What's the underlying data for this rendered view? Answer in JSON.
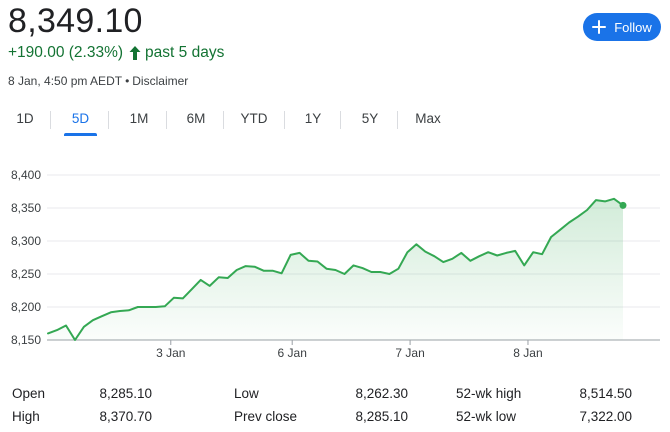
{
  "quote": {
    "price": "8,349.10",
    "change": "+190.00 (2.33%)",
    "period": "past 5 days",
    "timestamp": "8 Jan, 4:50 pm AEDT",
    "separator": "•",
    "disclaimer": "Disclaimer",
    "positive_color": "#137333"
  },
  "follow_button": {
    "label": "Follow",
    "icon": "plus-icon",
    "color": "#1a73e8"
  },
  "range_tabs": [
    {
      "label": "1D",
      "active": false
    },
    {
      "label": "5D",
      "active": true
    },
    {
      "label": "1M",
      "active": false
    },
    {
      "label": "6M",
      "active": false
    },
    {
      "label": "YTD",
      "active": false
    },
    {
      "label": "1Y",
      "active": false
    },
    {
      "label": "5Y",
      "active": false
    },
    {
      "label": "Max",
      "active": false
    }
  ],
  "chart_data": {
    "type": "area",
    "y_ticks": [
      "8,400",
      "8,350",
      "8,300",
      "8,250",
      "8,200",
      "8,150"
    ],
    "y_tick_values": [
      8400,
      8350,
      8300,
      8250,
      8200,
      8150
    ],
    "ylim": [
      8150,
      8400
    ],
    "x_ticks": [
      "3 Jan",
      "6 Jan",
      "7 Jan",
      "8 Jan"
    ],
    "x_tick_positions": [
      10.5,
      20.8,
      30.8,
      40.8
    ],
    "xlim": [
      0,
      52
    ],
    "grid": true,
    "line_color": "#34a853",
    "values": [
      8160,
      8165,
      8172,
      8150,
      8170,
      8180,
      8186,
      8192,
      8194,
      8195,
      8200,
      8200,
      8200,
      8201,
      8214,
      8213,
      8227,
      8241,
      8232,
      8245,
      8244,
      8256,
      8262,
      8261,
      8255,
      8255,
      8251,
      8279,
      8282,
      8270,
      8269,
      8258,
      8256,
      8250,
      8263,
      8259,
      8253,
      8253,
      8250,
      8258,
      8283,
      8295,
      8284,
      8277,
      8268,
      8273,
      8282,
      8270,
      8277,
      8283,
      8278,
      8282,
      8285,
      8263,
      8283,
      8280,
      8306,
      8317,
      8328,
      8337,
      8347,
      8362,
      8360,
      8364,
      8354
    ]
  },
  "stats": [
    {
      "label": "Open",
      "value": "8,285.10"
    },
    {
      "label": "High",
      "value": "8,370.70"
    },
    {
      "label": "Low",
      "value": "8,262.30"
    },
    {
      "label": "Prev close",
      "value": "8,285.10"
    },
    {
      "label": "52-wk high",
      "value": "8,514.50"
    },
    {
      "label": "52-wk low",
      "value": "7,322.00"
    }
  ]
}
